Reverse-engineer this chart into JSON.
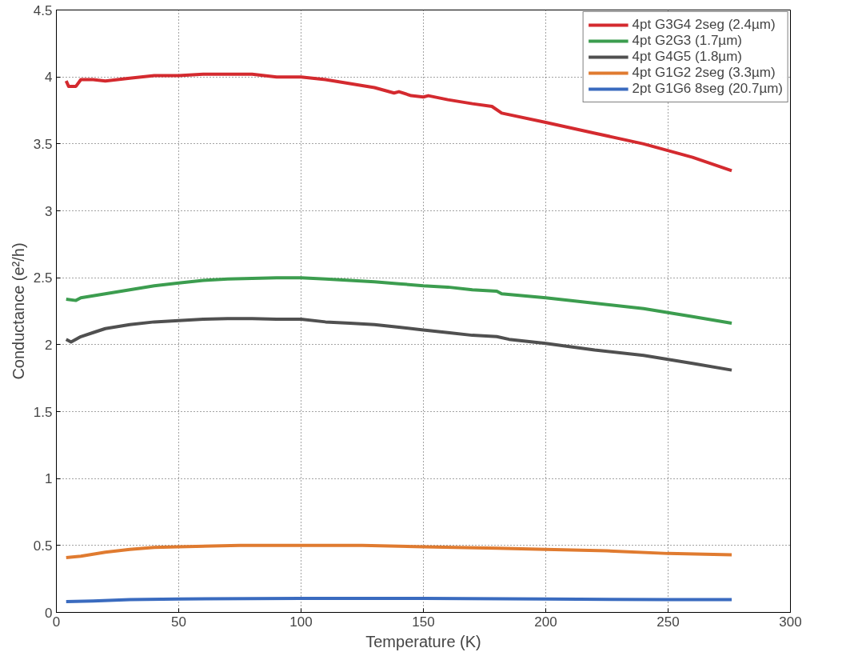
{
  "chart_data": {
    "type": "line",
    "xlabel": "Temperature (K)",
    "ylabel": "Conductance (e²/h)",
    "xlim": [
      0,
      300
    ],
    "xticks": [
      0,
      50,
      100,
      150,
      200,
      250,
      300
    ],
    "ylim": [
      0,
      4.5
    ],
    "yticks": [
      0,
      0.5,
      1,
      1.5,
      2,
      2.5,
      3,
      3.5,
      4,
      4.5
    ],
    "grid": true,
    "legend": "top right",
    "line_style": "solid",
    "marker": "none",
    "series": [
      {
        "name": "4pt G3G4 2seg (2.4µm)",
        "color": "#d42a2f",
        "x": [
          4,
          5,
          8,
          10,
          15,
          20,
          30,
          40,
          50,
          60,
          70,
          80,
          90,
          100,
          110,
          120,
          130,
          138,
          140,
          145,
          150,
          152,
          160,
          170,
          178,
          182,
          200,
          220,
          240,
          260,
          276
        ],
        "values": [
          3.97,
          3.93,
          3.93,
          3.98,
          3.98,
          3.97,
          3.99,
          4.01,
          4.01,
          4.02,
          4.02,
          4.02,
          4.0,
          4.0,
          3.98,
          3.95,
          3.92,
          3.88,
          3.89,
          3.86,
          3.85,
          3.86,
          3.83,
          3.8,
          3.78,
          3.73,
          3.66,
          3.58,
          3.5,
          3.4,
          3.3
        ]
      },
      {
        "name": "4pt G2G3 (1.7µm)",
        "color": "#3c9d4f",
        "x": [
          4,
          8,
          10,
          20,
          30,
          40,
          50,
          60,
          70,
          80,
          90,
          100,
          110,
          120,
          130,
          140,
          150,
          160,
          170,
          180,
          182,
          200,
          220,
          240,
          260,
          276
        ],
        "values": [
          2.34,
          2.33,
          2.35,
          2.38,
          2.41,
          2.44,
          2.46,
          2.48,
          2.49,
          2.495,
          2.5,
          2.5,
          2.49,
          2.48,
          2.47,
          2.455,
          2.44,
          2.43,
          2.41,
          2.4,
          2.38,
          2.35,
          2.31,
          2.27,
          2.21,
          2.16
        ]
      },
      {
        "name": "4pt G4G5 (1.8µm)",
        "color": "#505050",
        "x": [
          4,
          6,
          10,
          15,
          20,
          30,
          40,
          50,
          60,
          70,
          80,
          90,
          100,
          110,
          120,
          130,
          140,
          150,
          160,
          170,
          180,
          185,
          200,
          220,
          240,
          260,
          276
        ],
        "values": [
          2.04,
          2.02,
          2.06,
          2.09,
          2.12,
          2.15,
          2.17,
          2.18,
          2.19,
          2.195,
          2.195,
          2.19,
          2.19,
          2.17,
          2.16,
          2.15,
          2.13,
          2.11,
          2.09,
          2.07,
          2.06,
          2.04,
          2.01,
          1.96,
          1.92,
          1.86,
          1.81
        ]
      },
      {
        "name": "4pt G1G2 2seg (3.3µm)",
        "color": "#e07b30",
        "x": [
          4,
          10,
          20,
          30,
          40,
          50,
          75,
          100,
          125,
          150,
          180,
          200,
          225,
          250,
          276
        ],
        "values": [
          0.41,
          0.42,
          0.45,
          0.47,
          0.485,
          0.49,
          0.5,
          0.5,
          0.5,
          0.49,
          0.48,
          0.47,
          0.46,
          0.44,
          0.43
        ]
      },
      {
        "name": "2pt G1G6 8seg (20.7µm)",
        "color": "#3a6bbf",
        "x": [
          4,
          15,
          30,
          50,
          100,
          150,
          200,
          250,
          276
        ],
        "values": [
          0.08,
          0.085,
          0.095,
          0.1,
          0.105,
          0.105,
          0.1,
          0.095,
          0.095
        ]
      }
    ]
  }
}
